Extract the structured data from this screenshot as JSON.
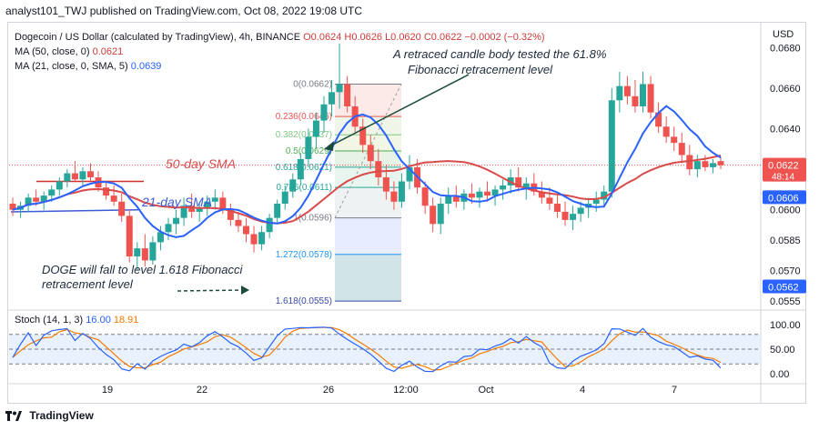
{
  "header": {
    "published": "analyst101_TWJ published on TradingView.com, Oct 08, 2022 19:08 UTC"
  },
  "legend": {
    "symbol": "Dogecoin / US Dollar (calculated by TradingView), 4h, BINANCE",
    "ohlc": "O0.0624 H0.0626 L0.0620 C0.0622 −0.0002 (−0.32%)",
    "ma50_label": "MA (50, close, 0)",
    "ma50_value": "0.0621",
    "ma21_label": "MA (21, close, 0, SMA, 5)",
    "ma21_value": "0.0639"
  },
  "currency": "USD",
  "stoch": {
    "label": "Stoch (14, 1, 3)",
    "k": "16.00",
    "d": "18.91"
  },
  "annotations": {
    "retrace_line1": "A retraced candle body tested the 61.8%",
    "retrace_line2": "Fibonacci retracement level",
    "sma50": "50-day SMA",
    "sma21": "21-day SMA",
    "doge_line1": "DOGE will fall to level 1.618 Fibonacci",
    "doge_line2": "retracement level"
  },
  "footer": {
    "brand": "TradingView"
  },
  "chart_data": {
    "type": "candlestick",
    "price_ticks": [
      0.068,
      0.066,
      0.064,
      0.0622,
      0.0606,
      0.06,
      0.0585,
      0.057,
      0.0562,
      0.0555
    ],
    "price_tick_labels": [
      "0.0680",
      "0.0660",
      "0.0640",
      "0.0622",
      "0.0606",
      "0.0600",
      "0.0585",
      "0.0570",
      "0.0562",
      "0.0555"
    ],
    "price_tag_current": {
      "value": "0.0622",
      "countdown": "48:14",
      "color": "#ef5350"
    },
    "price_tag_ma21": {
      "value": "0.0606",
      "color": "#2962ff"
    },
    "price_tag_low": {
      "value": "0.0562",
      "color": "#2962ff"
    },
    "stoch_ticks": [
      "100.00",
      "50.00",
      "0.00"
    ],
    "time_labels": [
      "19",
      "22",
      "26",
      "12:00",
      "Oct",
      "4",
      "7"
    ],
    "fib_levels": [
      {
        "label": "0(0.0662)",
        "value": 0.0662
      },
      {
        "label": "0.236(0.0646)",
        "value": 0.0646
      },
      {
        "label": "0.382(0.0637)",
        "value": 0.0637
      },
      {
        "label": "0.5(0.0629)",
        "value": 0.0629
      },
      {
        "label": "0.618(0.0621)",
        "value": 0.0621
      },
      {
        "label": "0.786(0.0611)",
        "value": 0.0611
      },
      {
        "label": "1(0.0596)",
        "value": 0.0596
      },
      {
        "label": "1.272(0.0578)",
        "value": 0.0578
      },
      {
        "label": "1.618(0.0555)",
        "value": 0.0555
      }
    ],
    "candles": [
      [
        0.0603,
        0.0606,
        0.0597,
        0.06
      ],
      [
        0.06,
        0.0604,
        0.0596,
        0.0602
      ],
      [
        0.0602,
        0.0608,
        0.0599,
        0.0606
      ],
      [
        0.0606,
        0.061,
        0.0602,
        0.0604
      ],
      [
        0.0604,
        0.0609,
        0.06,
        0.0607
      ],
      [
        0.0607,
        0.0612,
        0.0604,
        0.061
      ],
      [
        0.061,
        0.0616,
        0.0607,
        0.0614
      ],
      [
        0.0614,
        0.062,
        0.0611,
        0.0618
      ],
      [
        0.0618,
        0.0624,
        0.0614,
        0.0615
      ],
      [
        0.0615,
        0.0621,
        0.0612,
        0.0619
      ],
      [
        0.0619,
        0.0623,
        0.0614,
        0.0616
      ],
      [
        0.0616,
        0.0619,
        0.0609,
        0.0611
      ],
      [
        0.0611,
        0.0614,
        0.0605,
        0.0607
      ],
      [
        0.0607,
        0.0612,
        0.0602,
        0.0604
      ],
      [
        0.0604,
        0.0608,
        0.0594,
        0.0597
      ],
      [
        0.0597,
        0.06,
        0.0574,
        0.0577
      ],
      [
        0.0577,
        0.0584,
        0.057,
        0.0581
      ],
      [
        0.0581,
        0.0588,
        0.0572,
        0.0575
      ],
      [
        0.0575,
        0.0587,
        0.0573,
        0.0584
      ],
      [
        0.0584,
        0.0592,
        0.058,
        0.0589
      ],
      [
        0.0589,
        0.0596,
        0.0585,
        0.0593
      ],
      [
        0.0593,
        0.06,
        0.0588,
        0.0596
      ],
      [
        0.0596,
        0.0606,
        0.0592,
        0.0602
      ],
      [
        0.0602,
        0.0608,
        0.0596,
        0.0599
      ],
      [
        0.0599,
        0.0604,
        0.0594,
        0.0601
      ],
      [
        0.0601,
        0.0607,
        0.0597,
        0.0604
      ],
      [
        0.0604,
        0.061,
        0.06,
        0.0606
      ],
      [
        0.0606,
        0.0609,
        0.0598,
        0.06
      ],
      [
        0.06,
        0.0603,
        0.0592,
        0.0595
      ],
      [
        0.0595,
        0.0599,
        0.0589,
        0.0592
      ],
      [
        0.0592,
        0.0596,
        0.0584,
        0.0588
      ],
      [
        0.0588,
        0.0592,
        0.0579,
        0.0583
      ],
      [
        0.0583,
        0.0592,
        0.058,
        0.0589
      ],
      [
        0.0589,
        0.0598,
        0.0586,
        0.0596
      ],
      [
        0.0596,
        0.0605,
        0.0593,
        0.0603
      ],
      [
        0.0603,
        0.0612,
        0.06,
        0.0609
      ],
      [
        0.0609,
        0.0618,
        0.0606,
        0.0615
      ],
      [
        0.0615,
        0.0628,
        0.0612,
        0.0625
      ],
      [
        0.0625,
        0.064,
        0.0621,
        0.0636
      ],
      [
        0.0636,
        0.0648,
        0.063,
        0.0644
      ],
      [
        0.0644,
        0.0656,
        0.0638,
        0.0652
      ],
      [
        0.0652,
        0.0664,
        0.0646,
        0.0658
      ],
      [
        0.0658,
        0.0682,
        0.065,
        0.0662
      ],
      [
        0.0662,
        0.0666,
        0.0648,
        0.0651
      ],
      [
        0.0651,
        0.0656,
        0.0638,
        0.0641
      ],
      [
        0.0641,
        0.0645,
        0.0628,
        0.0632
      ],
      [
        0.0632,
        0.0637,
        0.062,
        0.0624
      ],
      [
        0.0624,
        0.063,
        0.0612,
        0.0616
      ],
      [
        0.0616,
        0.0622,
        0.0605,
        0.0609
      ],
      [
        0.0609,
        0.0614,
        0.06,
        0.0604
      ],
      [
        0.0604,
        0.0618,
        0.0601,
        0.0614
      ],
      [
        0.0614,
        0.0627,
        0.061,
        0.0621
      ],
      [
        0.0621,
        0.0625,
        0.0608,
        0.0611
      ],
      [
        0.0611,
        0.0614,
        0.0598,
        0.0602
      ],
      [
        0.0602,
        0.0606,
        0.0589,
        0.0593
      ],
      [
        0.0593,
        0.0606,
        0.0588,
        0.0603
      ],
      [
        0.0603,
        0.0611,
        0.0598,
        0.0607
      ],
      [
        0.0607,
        0.0612,
        0.0601,
        0.0604
      ],
      [
        0.0604,
        0.061,
        0.06,
        0.0608
      ],
      [
        0.0608,
        0.0613,
        0.0603,
        0.0606
      ],
      [
        0.0606,
        0.0611,
        0.0601,
        0.0609
      ],
      [
        0.0609,
        0.0614,
        0.0604,
        0.0607
      ],
      [
        0.0607,
        0.0612,
        0.0602,
        0.061
      ],
      [
        0.061,
        0.0615,
        0.0605,
        0.0612
      ],
      [
        0.0612,
        0.062,
        0.0608,
        0.0616
      ],
      [
        0.0616,
        0.0621,
        0.0609,
        0.0611
      ],
      [
        0.0611,
        0.0616,
        0.0605,
        0.0613
      ],
      [
        0.0613,
        0.0618,
        0.0607,
        0.0609
      ],
      [
        0.0609,
        0.0614,
        0.0603,
        0.0606
      ],
      [
        0.0606,
        0.0611,
        0.06,
        0.0603
      ],
      [
        0.0603,
        0.0608,
        0.0596,
        0.0599
      ],
      [
        0.0599,
        0.0604,
        0.0592,
        0.0595
      ],
      [
        0.0595,
        0.0602,
        0.059,
        0.0598
      ],
      [
        0.0598,
        0.0604,
        0.0594,
        0.0601
      ],
      [
        0.0601,
        0.0606,
        0.0596,
        0.0603
      ],
      [
        0.0603,
        0.0609,
        0.0599,
        0.0605
      ],
      [
        0.0605,
        0.0612,
        0.0601,
        0.0609
      ],
      [
        0.0609,
        0.066,
        0.0606,
        0.0654
      ],
      [
        0.0654,
        0.0668,
        0.0648,
        0.0661
      ],
      [
        0.0661,
        0.0666,
        0.0652,
        0.0656
      ],
      [
        0.0656,
        0.0664,
        0.0648,
        0.0651
      ],
      [
        0.0651,
        0.0668,
        0.0648,
        0.0662
      ],
      [
        0.0662,
        0.0666,
        0.0645,
        0.0648
      ],
      [
        0.0648,
        0.0653,
        0.0638,
        0.0641
      ],
      [
        0.0641,
        0.0646,
        0.0633,
        0.0636
      ],
      [
        0.0636,
        0.0641,
        0.0629,
        0.0633
      ],
      [
        0.0633,
        0.0638,
        0.0623,
        0.0627
      ],
      [
        0.0627,
        0.0632,
        0.0617,
        0.062
      ],
      [
        0.062,
        0.0627,
        0.0616,
        0.0624
      ],
      [
        0.0624,
        0.0627,
        0.0619,
        0.0621
      ],
      [
        0.0621,
        0.0625,
        0.0618,
        0.0623
      ],
      [
        0.0624,
        0.0626,
        0.062,
        0.0622
      ]
    ]
  }
}
